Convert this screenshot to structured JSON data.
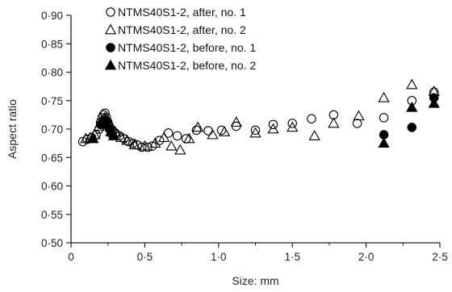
{
  "chart_data": {
    "type": "scatter",
    "title": "",
    "xlabel": "Size: mm",
    "ylabel": "Aspect ratio",
    "xlim": [
      0,
      2.5
    ],
    "ylim": [
      0.5,
      0.9
    ],
    "x_ticks": [
      {
        "value": 0,
        "label": "0"
      },
      {
        "value": 0.5,
        "label": "0·5"
      },
      {
        "value": 1.0,
        "label": "1·0"
      },
      {
        "value": 1.5,
        "label": "1·5"
      },
      {
        "value": 2.0,
        "label": "2·0"
      },
      {
        "value": 2.5,
        "label": "2·5"
      }
    ],
    "y_ticks": [
      {
        "value": 0.5,
        "label": "0·50"
      },
      {
        "value": 0.55,
        "label": "0·55"
      },
      {
        "value": 0.6,
        "label": "0·60"
      },
      {
        "value": 0.65,
        "label": "0·65"
      },
      {
        "value": 0.7,
        "label": "0·70"
      },
      {
        "value": 0.75,
        "label": "0·75"
      },
      {
        "value": 0.8,
        "label": "0·80"
      },
      {
        "value": 0.85,
        "label": "0·85"
      },
      {
        "value": 0.9,
        "label": "0·90"
      }
    ],
    "grid": false,
    "legend_position": "top-left",
    "series": [
      {
        "name": "NTMS40S1-2, after, no. 1",
        "marker": "open-circle",
        "points": [
          {
            "x": 0.08,
            "y": 0.678
          },
          {
            "x": 0.11,
            "y": 0.682
          },
          {
            "x": 0.14,
            "y": 0.685
          },
          {
            "x": 0.17,
            "y": 0.69
          },
          {
            "x": 0.19,
            "y": 0.7
          },
          {
            "x": 0.2,
            "y": 0.712
          },
          {
            "x": 0.21,
            "y": 0.72
          },
          {
            "x": 0.22,
            "y": 0.725
          },
          {
            "x": 0.23,
            "y": 0.728
          },
          {
            "x": 0.24,
            "y": 0.72
          },
          {
            "x": 0.25,
            "y": 0.712
          },
          {
            "x": 0.26,
            "y": 0.705
          },
          {
            "x": 0.28,
            "y": 0.698
          },
          {
            "x": 0.3,
            "y": 0.693
          },
          {
            "x": 0.33,
            "y": 0.688
          },
          {
            "x": 0.36,
            "y": 0.683
          },
          {
            "x": 0.39,
            "y": 0.678
          },
          {
            "x": 0.42,
            "y": 0.675
          },
          {
            "x": 0.45,
            "y": 0.672
          },
          {
            "x": 0.48,
            "y": 0.668
          },
          {
            "x": 0.52,
            "y": 0.668
          },
          {
            "x": 0.55,
            "y": 0.67
          },
          {
            "x": 0.6,
            "y": 0.68
          },
          {
            "x": 0.66,
            "y": 0.693
          },
          {
            "x": 0.72,
            "y": 0.688
          },
          {
            "x": 0.78,
            "y": 0.683
          },
          {
            "x": 0.85,
            "y": 0.698
          },
          {
            "x": 0.93,
            "y": 0.697
          },
          {
            "x": 1.02,
            "y": 0.698
          },
          {
            "x": 1.12,
            "y": 0.705
          },
          {
            "x": 1.25,
            "y": 0.698
          },
          {
            "x": 1.37,
            "y": 0.708
          },
          {
            "x": 1.5,
            "y": 0.71
          },
          {
            "x": 1.63,
            "y": 0.718
          },
          {
            "x": 1.78,
            "y": 0.725
          },
          {
            "x": 1.94,
            "y": 0.71
          },
          {
            "x": 2.12,
            "y": 0.72
          },
          {
            "x": 2.31,
            "y": 0.75
          },
          {
            "x": 2.46,
            "y": 0.765
          }
        ]
      },
      {
        "name": "NTMS40S1-2, after, no. 2",
        "marker": "open-triangle",
        "points": [
          {
            "x": 0.1,
            "y": 0.683
          },
          {
            "x": 0.13,
            "y": 0.685
          },
          {
            "x": 0.16,
            "y": 0.69
          },
          {
            "x": 0.19,
            "y": 0.705
          },
          {
            "x": 0.21,
            "y": 0.715
          },
          {
            "x": 0.23,
            "y": 0.72
          },
          {
            "x": 0.25,
            "y": 0.715
          },
          {
            "x": 0.27,
            "y": 0.705
          },
          {
            "x": 0.3,
            "y": 0.695
          },
          {
            "x": 0.34,
            "y": 0.685
          },
          {
            "x": 0.38,
            "y": 0.68
          },
          {
            "x": 0.43,
            "y": 0.672
          },
          {
            "x": 0.5,
            "y": 0.67
          },
          {
            "x": 0.57,
            "y": 0.675
          },
          {
            "x": 0.63,
            "y": 0.685
          },
          {
            "x": 0.68,
            "y": 0.67
          },
          {
            "x": 0.74,
            "y": 0.663
          },
          {
            "x": 0.8,
            "y": 0.683
          },
          {
            "x": 0.86,
            "y": 0.703
          },
          {
            "x": 0.96,
            "y": 0.69
          },
          {
            "x": 1.04,
            "y": 0.695
          },
          {
            "x": 1.12,
            "y": 0.712
          },
          {
            "x": 1.25,
            "y": 0.693
          },
          {
            "x": 1.37,
            "y": 0.7
          },
          {
            "x": 1.5,
            "y": 0.703
          },
          {
            "x": 1.65,
            "y": 0.688
          },
          {
            "x": 1.78,
            "y": 0.71
          },
          {
            "x": 1.95,
            "y": 0.723
          },
          {
            "x": 2.12,
            "y": 0.755
          },
          {
            "x": 2.31,
            "y": 0.778
          },
          {
            "x": 2.46,
            "y": 0.766
          }
        ]
      },
      {
        "name": "NTMS40S1-2, before, no. 1",
        "marker": "filled-circle",
        "points": [
          {
            "x": 0.2,
            "y": 0.708
          },
          {
            "x": 0.22,
            "y": 0.714
          },
          {
            "x": 0.24,
            "y": 0.712
          },
          {
            "x": 0.26,
            "y": 0.7
          },
          {
            "x": 0.28,
            "y": 0.69
          },
          {
            "x": 2.12,
            "y": 0.69
          },
          {
            "x": 2.31,
            "y": 0.703
          },
          {
            "x": 2.46,
            "y": 0.755
          }
        ]
      },
      {
        "name": "NTMS40S1-2, before, no. 2",
        "marker": "filled-triangle",
        "points": [
          {
            "x": 0.15,
            "y": 0.683
          },
          {
            "x": 0.21,
            "y": 0.712
          },
          {
            "x": 0.23,
            "y": 0.716
          },
          {
            "x": 0.25,
            "y": 0.708
          },
          {
            "x": 0.27,
            "y": 0.695
          },
          {
            "x": 0.29,
            "y": 0.688
          },
          {
            "x": 2.12,
            "y": 0.675
          },
          {
            "x": 2.31,
            "y": 0.738
          },
          {
            "x": 2.46,
            "y": 0.745
          }
        ]
      }
    ]
  }
}
